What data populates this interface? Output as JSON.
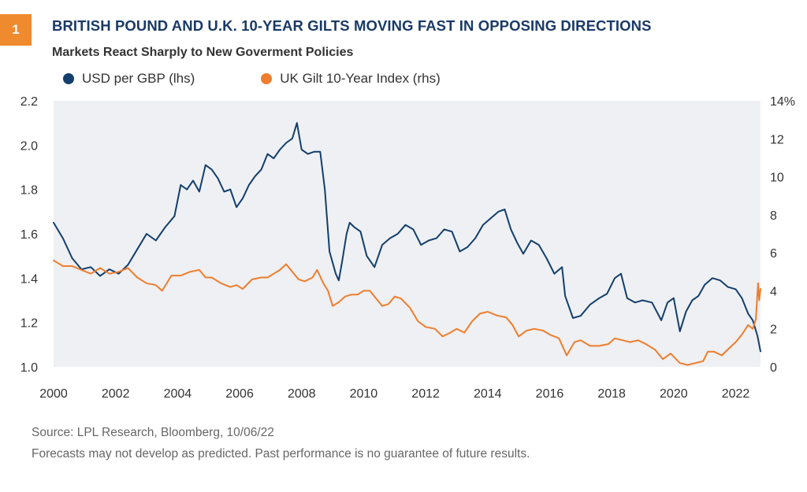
{
  "header": {
    "badge": "1",
    "title": "BRITISH POUND AND U.K. 10-YEAR GILTS MOVING FAST IN OPPOSING DIRECTIONS",
    "subtitle": "Markets React Sharply to New Goverment Policies"
  },
  "footer": {
    "source": "Source: LPL Research,  Bloomberg,  10/06/22",
    "disclaimer": "Forecasts may not develop as predicted. Past performance is no guarantee of future results."
  },
  "colors": {
    "gbp": "#143e6b",
    "gilt": "#ef7d2d",
    "plot_bg": "#eef0f3",
    "accent": "#f08a2e"
  },
  "chart_data": {
    "type": "line",
    "xlim": [
      2000,
      2022.8
    ],
    "x_ticks": [
      "2000",
      "2002",
      "2004",
      "2006",
      "2008",
      "2010",
      "2012",
      "2014",
      "2016",
      "2018",
      "2020",
      "2022"
    ],
    "y_left": {
      "lim": [
        1.0,
        2.2
      ],
      "ticks": [
        "1.0",
        "1.2",
        "1.4",
        "1.6",
        "1.8",
        "2.0",
        "2.2"
      ]
    },
    "y_right": {
      "lim": [
        0,
        14
      ],
      "ticks": [
        "0",
        "2",
        "4",
        "6",
        "8",
        "10",
        "12",
        "14"
      ],
      "top_label": "14%"
    },
    "legend_position": "top-left",
    "grid": false,
    "series": [
      {
        "name": "USD per GBP (lhs)",
        "axis": "left",
        "color": "#143e6b",
        "points": [
          [
            2000.0,
            1.65
          ],
          [
            2000.3,
            1.58
          ],
          [
            2000.6,
            1.49
          ],
          [
            2000.9,
            1.44
          ],
          [
            2001.2,
            1.45
          ],
          [
            2001.5,
            1.41
          ],
          [
            2001.8,
            1.44
          ],
          [
            2002.1,
            1.42
          ],
          [
            2002.4,
            1.46
          ],
          [
            2002.7,
            1.53
          ],
          [
            2003.0,
            1.6
          ],
          [
            2003.3,
            1.57
          ],
          [
            2003.6,
            1.63
          ],
          [
            2003.9,
            1.68
          ],
          [
            2004.1,
            1.82
          ],
          [
            2004.3,
            1.8
          ],
          [
            2004.5,
            1.84
          ],
          [
            2004.7,
            1.79
          ],
          [
            2004.9,
            1.91
          ],
          [
            2005.1,
            1.89
          ],
          [
            2005.3,
            1.85
          ],
          [
            2005.5,
            1.79
          ],
          [
            2005.7,
            1.8
          ],
          [
            2005.9,
            1.72
          ],
          [
            2006.1,
            1.76
          ],
          [
            2006.3,
            1.82
          ],
          [
            2006.5,
            1.86
          ],
          [
            2006.7,
            1.89
          ],
          [
            2006.9,
            1.96
          ],
          [
            2007.1,
            1.94
          ],
          [
            2007.3,
            1.98
          ],
          [
            2007.5,
            2.01
          ],
          [
            2007.7,
            2.03
          ],
          [
            2007.85,
            2.1
          ],
          [
            2008.0,
            1.98
          ],
          [
            2008.2,
            1.96
          ],
          [
            2008.4,
            1.97
          ],
          [
            2008.6,
            1.97
          ],
          [
            2008.75,
            1.8
          ],
          [
            2008.9,
            1.52
          ],
          [
            2009.1,
            1.42
          ],
          [
            2009.2,
            1.39
          ],
          [
            2009.3,
            1.47
          ],
          [
            2009.45,
            1.6
          ],
          [
            2009.55,
            1.65
          ],
          [
            2009.7,
            1.63
          ],
          [
            2009.9,
            1.61
          ],
          [
            2010.1,
            1.5
          ],
          [
            2010.35,
            1.45
          ],
          [
            2010.6,
            1.55
          ],
          [
            2010.85,
            1.58
          ],
          [
            2011.1,
            1.6
          ],
          [
            2011.35,
            1.64
          ],
          [
            2011.6,
            1.62
          ],
          [
            2011.85,
            1.55
          ],
          [
            2012.1,
            1.57
          ],
          [
            2012.35,
            1.58
          ],
          [
            2012.6,
            1.62
          ],
          [
            2012.85,
            1.61
          ],
          [
            2013.1,
            1.52
          ],
          [
            2013.35,
            1.54
          ],
          [
            2013.6,
            1.58
          ],
          [
            2013.85,
            1.64
          ],
          [
            2014.1,
            1.67
          ],
          [
            2014.35,
            1.7
          ],
          [
            2014.55,
            1.71
          ],
          [
            2014.75,
            1.62
          ],
          [
            2014.95,
            1.56
          ],
          [
            2015.15,
            1.51
          ],
          [
            2015.4,
            1.57
          ],
          [
            2015.65,
            1.55
          ],
          [
            2015.9,
            1.49
          ],
          [
            2016.15,
            1.42
          ],
          [
            2016.4,
            1.45
          ],
          [
            2016.5,
            1.32
          ],
          [
            2016.75,
            1.22
          ],
          [
            2017.0,
            1.23
          ],
          [
            2017.3,
            1.28
          ],
          [
            2017.6,
            1.31
          ],
          [
            2017.85,
            1.33
          ],
          [
            2018.1,
            1.4
          ],
          [
            2018.3,
            1.42
          ],
          [
            2018.5,
            1.31
          ],
          [
            2018.75,
            1.29
          ],
          [
            2019.0,
            1.3
          ],
          [
            2019.3,
            1.29
          ],
          [
            2019.6,
            1.21
          ],
          [
            2019.8,
            1.29
          ],
          [
            2020.0,
            1.31
          ],
          [
            2020.2,
            1.16
          ],
          [
            2020.4,
            1.25
          ],
          [
            2020.6,
            1.3
          ],
          [
            2020.8,
            1.32
          ],
          [
            2021.0,
            1.37
          ],
          [
            2021.25,
            1.4
          ],
          [
            2021.5,
            1.39
          ],
          [
            2021.75,
            1.36
          ],
          [
            2022.0,
            1.35
          ],
          [
            2022.2,
            1.31
          ],
          [
            2022.4,
            1.24
          ],
          [
            2022.55,
            1.21
          ],
          [
            2022.7,
            1.14
          ],
          [
            2022.8,
            1.07
          ]
        ]
      },
      {
        "name": "UK Gilt 10-Year Index (rhs)",
        "axis": "right",
        "color": "#ef7d2d",
        "points": [
          [
            2000.0,
            5.6
          ],
          [
            2000.3,
            5.3
          ],
          [
            2000.6,
            5.3
          ],
          [
            2000.9,
            5.1
          ],
          [
            2001.2,
            4.9
          ],
          [
            2001.5,
            5.2
          ],
          [
            2001.8,
            4.9
          ],
          [
            2002.1,
            5.0
          ],
          [
            2002.4,
            5.2
          ],
          [
            2002.7,
            4.7
          ],
          [
            2003.0,
            4.4
          ],
          [
            2003.3,
            4.3
          ],
          [
            2003.5,
            4.0
          ],
          [
            2003.8,
            4.8
          ],
          [
            2004.1,
            4.8
          ],
          [
            2004.4,
            5.0
          ],
          [
            2004.7,
            5.1
          ],
          [
            2004.9,
            4.7
          ],
          [
            2005.1,
            4.7
          ],
          [
            2005.4,
            4.4
          ],
          [
            2005.7,
            4.2
          ],
          [
            2005.9,
            4.3
          ],
          [
            2006.1,
            4.1
          ],
          [
            2006.4,
            4.6
          ],
          [
            2006.7,
            4.7
          ],
          [
            2006.9,
            4.7
          ],
          [
            2007.1,
            4.9
          ],
          [
            2007.3,
            5.1
          ],
          [
            2007.5,
            5.4
          ],
          [
            2007.7,
            5.0
          ],
          [
            2007.9,
            4.6
          ],
          [
            2008.1,
            4.5
          ],
          [
            2008.35,
            4.7
          ],
          [
            2008.5,
            5.1
          ],
          [
            2008.7,
            4.4
          ],
          [
            2008.85,
            4.0
          ],
          [
            2009.0,
            3.2
          ],
          [
            2009.2,
            3.4
          ],
          [
            2009.4,
            3.7
          ],
          [
            2009.6,
            3.8
          ],
          [
            2009.8,
            3.8
          ],
          [
            2010.0,
            4.0
          ],
          [
            2010.2,
            4.0
          ],
          [
            2010.4,
            3.6
          ],
          [
            2010.6,
            3.2
          ],
          [
            2010.8,
            3.3
          ],
          [
            2011.0,
            3.7
          ],
          [
            2011.2,
            3.6
          ],
          [
            2011.5,
            3.1
          ],
          [
            2011.75,
            2.4
          ],
          [
            2012.0,
            2.1
          ],
          [
            2012.3,
            2.0
          ],
          [
            2012.55,
            1.6
          ],
          [
            2012.8,
            1.8
          ],
          [
            2013.0,
            2.0
          ],
          [
            2013.25,
            1.8
          ],
          [
            2013.5,
            2.4
          ],
          [
            2013.75,
            2.8
          ],
          [
            2014.0,
            2.9
          ],
          [
            2014.3,
            2.7
          ],
          [
            2014.6,
            2.6
          ],
          [
            2014.8,
            2.2
          ],
          [
            2015.0,
            1.6
          ],
          [
            2015.25,
            1.9
          ],
          [
            2015.5,
            2.0
          ],
          [
            2015.8,
            1.9
          ],
          [
            2016.0,
            1.7
          ],
          [
            2016.3,
            1.5
          ],
          [
            2016.55,
            0.6
          ],
          [
            2016.8,
            1.3
          ],
          [
            2017.0,
            1.4
          ],
          [
            2017.3,
            1.1
          ],
          [
            2017.6,
            1.1
          ],
          [
            2017.9,
            1.2
          ],
          [
            2018.1,
            1.5
          ],
          [
            2018.35,
            1.4
          ],
          [
            2018.6,
            1.3
          ],
          [
            2018.85,
            1.4
          ],
          [
            2019.1,
            1.2
          ],
          [
            2019.4,
            0.9
          ],
          [
            2019.65,
            0.4
          ],
          [
            2019.9,
            0.7
          ],
          [
            2020.2,
            0.2
          ],
          [
            2020.45,
            0.1
          ],
          [
            2020.7,
            0.2
          ],
          [
            2020.95,
            0.3
          ],
          [
            2021.1,
            0.8
          ],
          [
            2021.3,
            0.8
          ],
          [
            2021.55,
            0.6
          ],
          [
            2021.8,
            1.0
          ],
          [
            2022.0,
            1.3
          ],
          [
            2022.2,
            1.7
          ],
          [
            2022.4,
            2.2
          ],
          [
            2022.55,
            2.0
          ],
          [
            2022.65,
            2.5
          ],
          [
            2022.72,
            4.4
          ],
          [
            2022.76,
            3.5
          ],
          [
            2022.8,
            4.1
          ]
        ]
      }
    ]
  }
}
